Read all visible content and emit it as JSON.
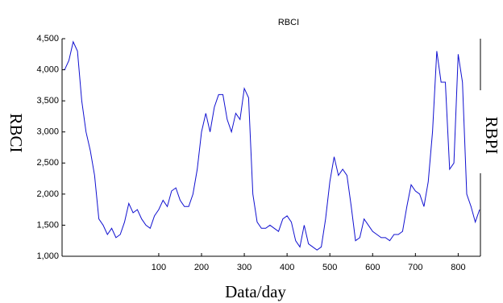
{
  "chart_data": {
    "type": "line",
    "title": "RBCI",
    "x_label": "Data/day",
    "y_label": "RBCI",
    "y2_label": "RBPI",
    "x": [
      -120,
      -110,
      -100,
      -90,
      -80,
      -70,
      -60,
      -50,
      -40,
      -30,
      -20,
      -10,
      0,
      10,
      20,
      30,
      40,
      50,
      60,
      70,
      80,
      90,
      100,
      110,
      120,
      130,
      140,
      150,
      160,
      170,
      180,
      190,
      200,
      210,
      220,
      230,
      240,
      250,
      260,
      270,
      280,
      290,
      300,
      310,
      320,
      330,
      340,
      350,
      360,
      370,
      380,
      390,
      400,
      410,
      420,
      430,
      440,
      450,
      460,
      470,
      480,
      490,
      500,
      510,
      520,
      530,
      540,
      550,
      560,
      570,
      580,
      590,
      600,
      610,
      620,
      630,
      640,
      650,
      660,
      670,
      680,
      690,
      700,
      710,
      720,
      730,
      740,
      750,
      760,
      770,
      780,
      790,
      800,
      810,
      820,
      830,
      840,
      850
    ],
    "series": [
      {
        "name": "RBCI",
        "color": "#1010d0",
        "values": [
          4000,
          4150,
          4450,
          4300,
          3500,
          3000,
          2700,
          2300,
          1600,
          1500,
          1350,
          1450,
          1300,
          1350,
          1550,
          1850,
          1700,
          1750,
          1600,
          1500,
          1450,
          1650,
          1750,
          1900,
          1800,
          2050,
          2100,
          1900,
          1800,
          1800,
          2000,
          2400,
          3000,
          3300,
          3000,
          3400,
          3600,
          3600,
          3200,
          3000,
          3300,
          3200,
          3700,
          3550,
          2000,
          1550,
          1450,
          1450,
          1500,
          1450,
          1400,
          1600,
          1650,
          1550,
          1250,
          1150,
          1500,
          1200,
          1150,
          1100,
          1150,
          1600,
          2200,
          2600,
          2300,
          2400,
          2300,
          1800,
          1250,
          1300,
          1600,
          1500,
          1400,
          1350,
          1300,
          1300,
          1250,
          1350,
          1350,
          1400,
          1800,
          2150,
          2050,
          2000,
          1800,
          2200,
          3000,
          4300,
          3800,
          3800,
          2400,
          2500,
          4250,
          3800,
          2000,
          1800,
          1550,
          1750
        ]
      }
    ],
    "xlim": [
      -126,
      852
    ],
    "xticks": [
      100,
      200,
      300,
      400,
      500,
      600,
      700,
      800
    ],
    "ylim": [
      1000,
      4500
    ],
    "yticks": [
      {
        "value": 1000,
        "label": "1,000"
      },
      {
        "value": 1500,
        "label": "1,500"
      },
      {
        "value": 2000,
        "label": "2,000"
      },
      {
        "value": 2500,
        "label": "2,500"
      },
      {
        "value": 3000,
        "label": "3,000"
      },
      {
        "value": 3500,
        "label": "3,500"
      },
      {
        "value": 4000,
        "label": "4,000"
      },
      {
        "value": 4500,
        "label": "4,500"
      }
    ]
  }
}
